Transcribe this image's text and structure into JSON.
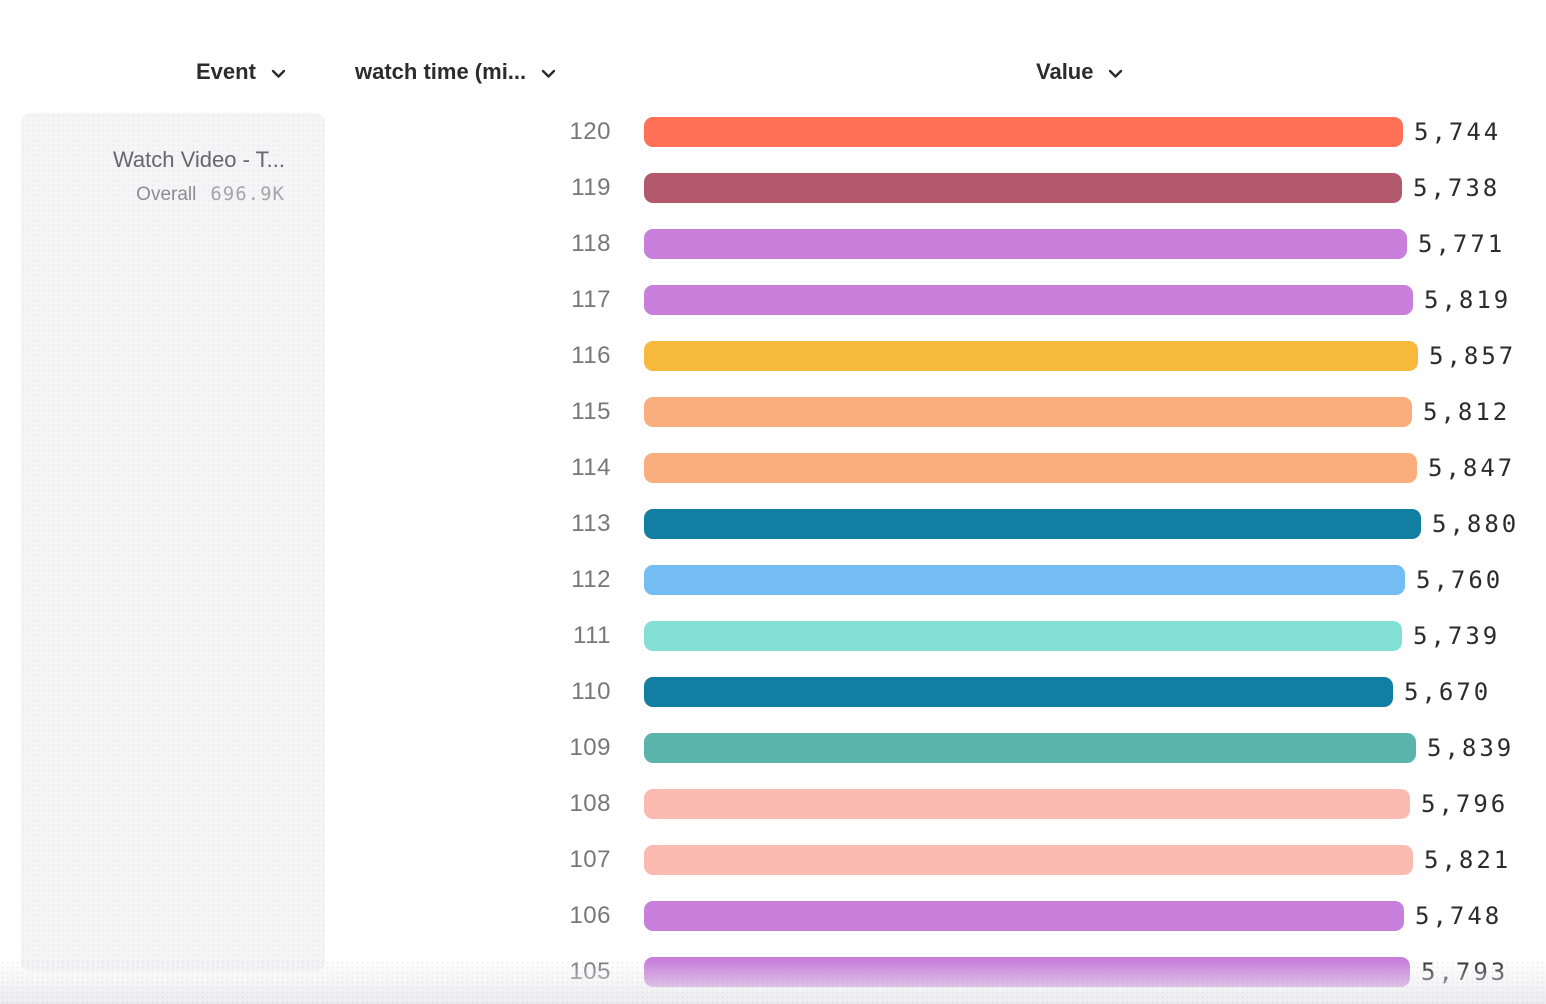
{
  "header": {
    "event": {
      "label": "Event"
    },
    "watch_time": {
      "label": "watch time (mi..."
    },
    "value": {
      "label": "Value"
    }
  },
  "event_card": {
    "title": "Watch Video - T...",
    "overall_label": "Overall",
    "overall_value": "696.9K"
  },
  "colors": {
    "text_primary": "#2b2b30",
    "text_secondary": "#77777c",
    "card_bg": "#f5f5f6"
  },
  "chart_data": {
    "type": "bar",
    "orientation": "horizontal",
    "title": "",
    "xlabel": "Value",
    "ylabel": "watch time (mi...",
    "categories": [
      "120",
      "119",
      "118",
      "117",
      "116",
      "115",
      "114",
      "113",
      "112",
      "111",
      "110",
      "109",
      "108",
      "107",
      "106",
      "105"
    ],
    "values": [
      5744,
      5738,
      5771,
      5819,
      5857,
      5812,
      5847,
      5880,
      5760,
      5739,
      5670,
      5839,
      5796,
      5821,
      5748,
      5793
    ],
    "value_labels": [
      "5,744",
      "5,738",
      "5,771",
      "5,819",
      "5,857",
      "5,812",
      "5,847",
      "5,880",
      "5,760",
      "5,739",
      "5,670",
      "5,839",
      "5,796",
      "5,821",
      "5,748",
      "5,793"
    ],
    "colors": [
      "#FF7156",
      "#B2596B",
      "#C87FDB",
      "#C87FDB",
      "#F7B93B",
      "#FBAE7D",
      "#FBAE7D",
      "#117EA2",
      "#73BCF4",
      "#81DFD3",
      "#117EA2",
      "#5AB4AC",
      "#FCBBB1",
      "#FCBBB1",
      "#C87FDB",
      "#C87FDB"
    ],
    "xlim": [
      0,
      5880
    ],
    "grid": false,
    "legend": false
  }
}
